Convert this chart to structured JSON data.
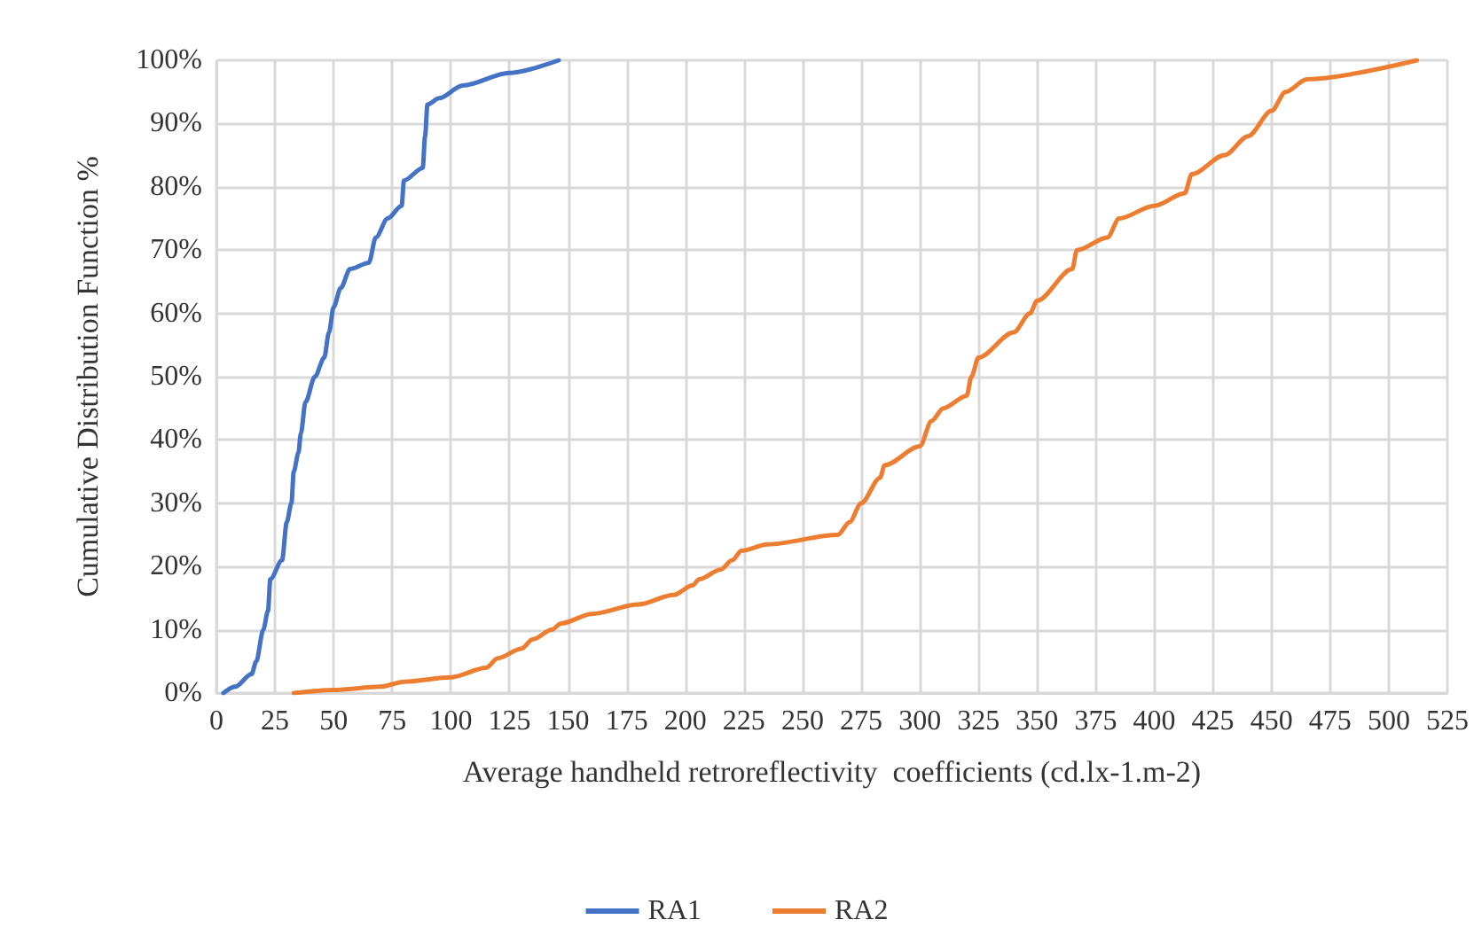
{
  "chart_data": {
    "type": "line",
    "xlabel": "Average handheld retroreflectivity  coefficients (cd.lx-1.m-2)",
    "ylabel": "Cumulative Distribution Function %",
    "xlim": [
      0,
      525
    ],
    "xticks": [
      0,
      25,
      50,
      75,
      100,
      125,
      150,
      175,
      200,
      225,
      250,
      275,
      300,
      325,
      350,
      375,
      400,
      425,
      450,
      475,
      500,
      525
    ],
    "ylim": [
      0,
      100
    ],
    "yticks": [
      {
        "value": 0,
        "label": "0%"
      },
      {
        "value": 10,
        "label": "10%"
      },
      {
        "value": 20,
        "label": "20%"
      },
      {
        "value": 30,
        "label": "30%"
      },
      {
        "value": 40,
        "label": "40%"
      },
      {
        "value": 50,
        "label": "50%"
      },
      {
        "value": 60,
        "label": "60%"
      },
      {
        "value": 70,
        "label": "70%"
      },
      {
        "value": 80,
        "label": "80%"
      },
      {
        "value": 90,
        "label": "90%"
      },
      {
        "value": 100,
        "label": "100%"
      }
    ],
    "grid": true,
    "legend": "bottom",
    "marker": "none",
    "line_style": "solid",
    "series": [
      {
        "name": "RA1",
        "color": "#4472c4",
        "x": [
          3,
          8,
          15,
          17,
          20,
          22,
          23,
          28,
          30,
          32,
          33,
          35,
          36,
          38,
          42,
          46,
          48,
          50,
          53,
          57,
          65,
          68,
          73,
          79,
          80,
          88,
          89,
          90,
          95,
          105,
          125,
          146
        ],
        "values": [
          0,
          1,
          3,
          5,
          10,
          13,
          18,
          21,
          27,
          30,
          35,
          38,
          41,
          46,
          50,
          53,
          57,
          61,
          64,
          67,
          68,
          72,
          75,
          77,
          81,
          83,
          88,
          93,
          94,
          96,
          98,
          100
        ]
      },
      {
        "name": "RA2",
        "color": "#ed7d31",
        "x": [
          33,
          50,
          70,
          80,
          100,
          115,
          120,
          130,
          135,
          143,
          147,
          160,
          180,
          195,
          203,
          206,
          215,
          220,
          224,
          235,
          265,
          270,
          275,
          283,
          285,
          300,
          305,
          310,
          320,
          322,
          325,
          340,
          347,
          350,
          365,
          367,
          380,
          385,
          400,
          413,
          416,
          430,
          440,
          450,
          456,
          465,
          512
        ],
        "values": [
          0,
          0.5,
          1,
          1.8,
          2.5,
          4,
          5.5,
          7,
          8.5,
          10,
          11,
          12.5,
          14,
          15.5,
          17,
          18,
          19.5,
          21,
          22.5,
          23.5,
          25,
          27,
          30,
          34,
          36,
          39,
          43,
          45,
          47,
          50,
          53,
          57,
          60,
          62,
          67,
          70,
          72,
          75,
          77,
          79,
          82,
          85,
          88,
          92,
          95,
          97,
          100
        ]
      }
    ]
  }
}
